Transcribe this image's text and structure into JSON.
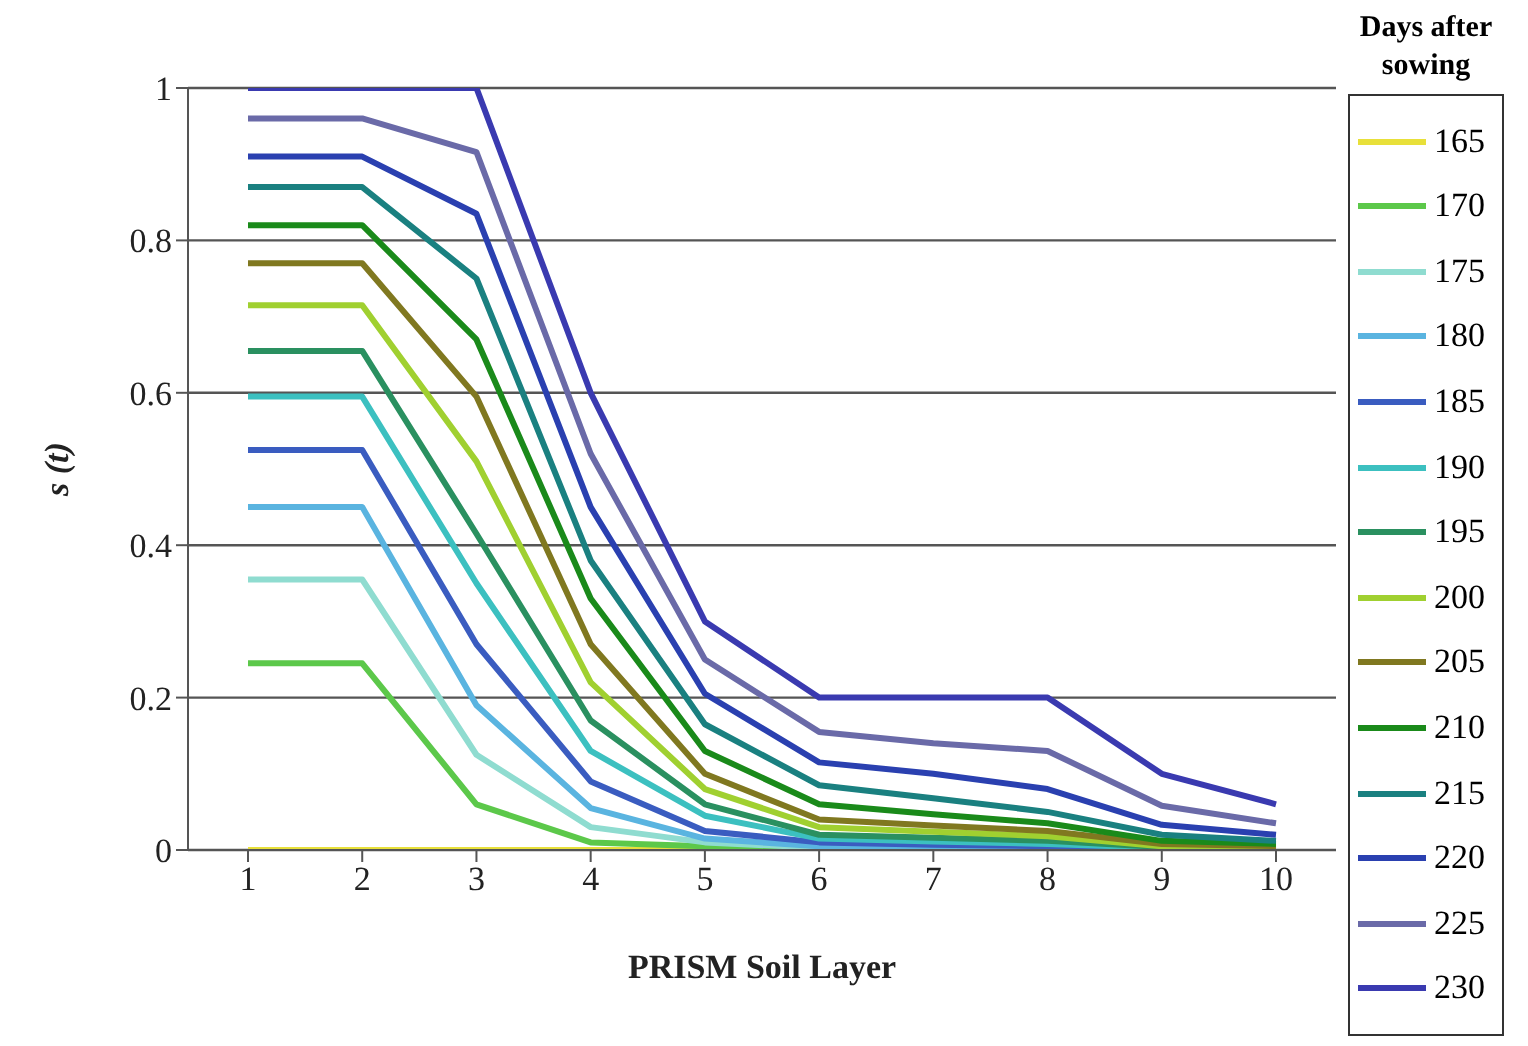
{
  "chart_data": {
    "type": "line",
    "xlabel": "PRISM Soil Layer",
    "ylabel": "s (t)",
    "legend_title": "Days after sowing",
    "categories": [
      "1",
      "2",
      "3",
      "4",
      "5",
      "6",
      "7",
      "8",
      "9",
      "10"
    ],
    "ylim": [
      0,
      1
    ],
    "yticks": [
      0,
      0.2,
      0.4,
      0.6,
      0.8,
      1
    ],
    "grid": "y",
    "legend": "right",
    "marker": "none",
    "line_style": "solid",
    "series": [
      {
        "name": "165",
        "color": "#e8e03a",
        "values": [
          0,
          0,
          0,
          0,
          0,
          0,
          null,
          null,
          null,
          null
        ]
      },
      {
        "name": "170",
        "color": "#5cc84a",
        "values": [
          0.245,
          0.245,
          0.06,
          0.01,
          0.005,
          0,
          0,
          0,
          0,
          0
        ]
      },
      {
        "name": "175",
        "color": "#8fdcd0",
        "values": [
          0.355,
          0.355,
          0.125,
          0.03,
          0.01,
          0.003,
          0.002,
          0.001,
          0.001,
          0
        ]
      },
      {
        "name": "180",
        "color": "#5ab4e0",
        "values": [
          0.45,
          0.45,
          0.19,
          0.055,
          0.015,
          0.005,
          0.004,
          0.003,
          null,
          null
        ]
      },
      {
        "name": "185",
        "color": "#3a5cc0",
        "values": [
          0.525,
          0.525,
          0.27,
          0.09,
          0.025,
          0.01,
          0.007,
          0.005,
          0.003,
          0.001
        ]
      },
      {
        "name": "190",
        "color": "#3cc0c0",
        "values": [
          0.595,
          0.595,
          0.35,
          0.13,
          0.045,
          0.015,
          0.011,
          0.008,
          0.003,
          0.001
        ]
      },
      {
        "name": "195",
        "color": "#2a9060",
        "values": [
          0.655,
          0.655,
          0.415,
          0.17,
          0.06,
          0.02,
          0.016,
          0.012,
          0.004,
          0.002
        ]
      },
      {
        "name": "200",
        "color": "#a0d030",
        "values": [
          0.715,
          0.715,
          0.51,
          0.22,
          0.08,
          0.03,
          0.024,
          0.018,
          0.005,
          0.003
        ]
      },
      {
        "name": "205",
        "color": "#807820",
        "values": [
          0.77,
          0.77,
          0.595,
          0.27,
          0.1,
          0.04,
          0.032,
          0.025,
          0.008,
          0.005
        ]
      },
      {
        "name": "210",
        "color": "#1a8a1a",
        "values": [
          0.82,
          0.82,
          0.67,
          0.33,
          0.13,
          0.06,
          0.047,
          0.035,
          0.012,
          0.008
        ]
      },
      {
        "name": "215",
        "color": "#1a8080",
        "values": [
          0.87,
          0.87,
          0.75,
          0.38,
          0.165,
          0.085,
          0.068,
          0.05,
          0.02,
          0.012
        ]
      },
      {
        "name": "220",
        "color": "#2a40b0",
        "values": [
          0.91,
          0.91,
          0.835,
          0.45,
          0.205,
          0.115,
          0.1,
          0.08,
          0.033,
          0.02
        ]
      },
      {
        "name": "225",
        "color": "#6a6aa8",
        "values": [
          0.96,
          0.96,
          0.916,
          0.52,
          0.25,
          0.155,
          0.14,
          0.13,
          0.058,
          0.035
        ]
      },
      {
        "name": "230",
        "color": "#3a3ab0",
        "values": [
          1,
          1,
          1,
          0.6,
          0.3,
          0.2,
          0.2,
          0.2,
          0.1,
          0.06
        ]
      }
    ]
  }
}
